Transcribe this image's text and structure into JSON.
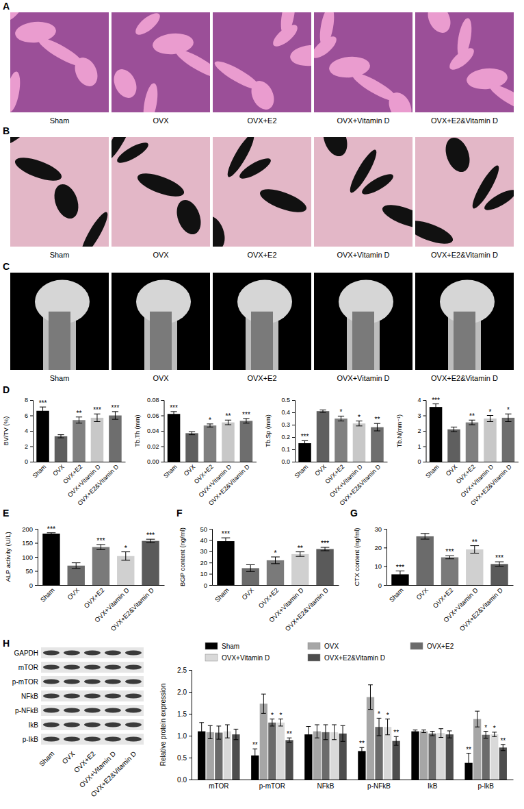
{
  "letters": [
    "A",
    "B",
    "C",
    "D",
    "E",
    "F",
    "G",
    "H"
  ],
  "panels": {
    "A": {
      "labels": [
        "Sham",
        "OVX",
        "OVX+E2",
        "OVX+Vitamin D",
        "OVX+E2&Vitamin D"
      ]
    },
    "B": {
      "labels": [
        "Sham",
        "OVX",
        "OVX+E2",
        "OVX+Vitamin D",
        "OVX+E2&Vitamin D"
      ]
    },
    "C": {
      "labels": [
        "Sham",
        "OVX",
        "OVX+E2",
        "OVX+Vitamin D",
        "OVX+E2&Vitamin D"
      ]
    }
  },
  "blot": {
    "rows": [
      "GAPDH",
      "mTOR",
      "p-mTOR",
      "NFkB",
      "p-NFkB",
      "IkB",
      "p-IkB"
    ],
    "lanes": [
      "Sham",
      "OVX",
      "OVX+E2",
      "OVX+Vitamin D",
      "OVX+E2&Vitamin D"
    ]
  },
  "chart_data": [
    {
      "type": "bar",
      "ylabel": "BV/TV (%)",
      "categories": [
        "Sham",
        "OVX",
        "OVX+E2",
        "OVX+Vitamin D",
        "OVX+E2&Vitamin D"
      ],
      "values": [
        6.6,
        3.3,
        5.4,
        5.7,
        6.0
      ],
      "errors": [
        0.5,
        0.2,
        0.4,
        0.5,
        0.5
      ],
      "annotations": [
        "***",
        null,
        "**",
        "***",
        "***"
      ],
      "colors": [
        "#000000",
        "#5f5f5f",
        "#808080",
        "#c8c8c8",
        "#6e6e6e"
      ],
      "ylim": [
        0,
        8
      ],
      "yticks": [
        0,
        2,
        4,
        6,
        8
      ]
    },
    {
      "type": "bar",
      "ylabel": "Tb.Th (mm)",
      "categories": [
        "Sham",
        "OVX",
        "OVX+E2",
        "OVX+Vitamin D",
        "OVX+E2&Vitamin D"
      ],
      "values": [
        0.062,
        0.037,
        0.047,
        0.051,
        0.053
      ],
      "errors": [
        0.003,
        0.002,
        0.002,
        0.003,
        0.003
      ],
      "annotations": [
        "***",
        null,
        "*",
        "**",
        "***"
      ],
      "colors": [
        "#000000",
        "#5f5f5f",
        "#808080",
        "#c8c8c8",
        "#6e6e6e"
      ],
      "ylim": [
        0,
        0.08
      ],
      "yticks": [
        {
          "value": 0,
          "label": "0.00"
        },
        {
          "value": 0.02,
          "label": "0.02"
        },
        {
          "value": 0.04,
          "label": "0.04"
        },
        {
          "value": 0.06,
          "label": "0.06"
        },
        {
          "value": 0.08,
          "label": "0.08"
        }
      ]
    },
    {
      "type": "bar",
      "ylabel": "Tb.Sp (mm)",
      "categories": [
        "Sham",
        "OVX",
        "OVX+E2",
        "OVX+Vitamin D",
        "OVX+E2&Vitamin D"
      ],
      "values": [
        0.15,
        0.41,
        0.35,
        0.31,
        0.28
      ],
      "errors": [
        0.02,
        0.01,
        0.02,
        0.02,
        0.03
      ],
      "annotations": [
        "***",
        null,
        "*",
        "*",
        "**"
      ],
      "colors": [
        "#000000",
        "#5f5f5f",
        "#808080",
        "#c8c8c8",
        "#6e6e6e"
      ],
      "ylim": [
        0,
        0.5
      ],
      "yticks": [
        {
          "value": 0,
          "label": "0.0"
        },
        0.1,
        0.2,
        0.3,
        0.4,
        0.5
      ]
    },
    {
      "type": "bar",
      "ylabel": "Tb.N(mm⁻¹)",
      "categories": [
        "Sham",
        "OVX",
        "OVX+E2",
        "OVX+Vitamin D",
        "OVX+E2&Vitamin D"
      ],
      "values": [
        3.55,
        2.1,
        2.55,
        2.8,
        2.85
      ],
      "errors": [
        0.2,
        0.15,
        0.15,
        0.2,
        0.25
      ],
      "annotations": [
        "***",
        null,
        "**",
        "*",
        "*"
      ],
      "colors": [
        "#000000",
        "#5f5f5f",
        "#808080",
        "#c8c8c8",
        "#6e6e6e"
      ],
      "ylim": [
        0,
        4
      ],
      "yticks": [
        0,
        1,
        2,
        3,
        4
      ]
    },
    {
      "type": "bar",
      "ylabel": "ALP activity (U/L)",
      "categories": [
        "Sham",
        "OVX",
        "OVX+E2",
        "OVX+Vitamin D",
        "OVX+E2&Vitamin D"
      ],
      "values": [
        183,
        69,
        135,
        103,
        157
      ],
      "errors": [
        3,
        10,
        9,
        15,
        6
      ],
      "annotations": [
        "***",
        null,
        "***",
        "*",
        "***"
      ],
      "colors": [
        "#000000",
        "#6b6b6b",
        "#7a7a7a",
        "#d0d0d0",
        "#5a5a5a"
      ],
      "ylim": [
        0,
        200
      ],
      "yticks": [
        0,
        50,
        100,
        150,
        200
      ]
    },
    {
      "type": "bar",
      "ylabel": "BGP content (ng/ml)",
      "categories": [
        "Sham",
        "OVX",
        "OVX+E2",
        "OVX+Vitamin D",
        "OVX+E2&Vitamin D"
      ],
      "values": [
        39,
        15,
        22,
        27.5,
        32
      ],
      "errors": [
        3,
        3,
        3,
        2,
        1.5
      ],
      "annotations": [
        "***",
        null,
        "*",
        "**",
        "***"
      ],
      "colors": [
        "#000000",
        "#6b6b6b",
        "#7a7a7a",
        "#d0d0d0",
        "#5a5a5a"
      ],
      "ylim": [
        0,
        50
      ],
      "yticks": [
        0,
        10,
        20,
        30,
        40,
        50
      ]
    },
    {
      "type": "bar",
      "ylabel": "CTX content (ng/ml)",
      "categories": [
        "Sham",
        "OVX",
        "OVX+E2",
        "OVX+Vitamin D",
        "OVX+E2&Vitamin D"
      ],
      "values": [
        5.7,
        26,
        14.8,
        19,
        11.2
      ],
      "errors": [
        1.8,
        1.5,
        0.8,
        2,
        1.2
      ],
      "annotations": [
        "***",
        null,
        "***",
        "**",
        "***"
      ],
      "colors": [
        "#000000",
        "#6b6b6b",
        "#7a7a7a",
        "#d0d0d0",
        "#5a5a5a"
      ],
      "ylim": [
        0,
        30
      ],
      "yticks": [
        0,
        10,
        20,
        30
      ]
    },
    {
      "type": "bar",
      "ylabel": "Relative protein expression",
      "legend": "top",
      "categories": [
        "mTOR",
        "p-mTOR",
        "NFkB",
        "p-NFkB",
        "IkB",
        "p-IkB"
      ],
      "series": [
        {
          "name": "Sham",
          "color": "#000000",
          "values": [
            1.1,
            0.55,
            1.03,
            0.65,
            1.1,
            0.38
          ],
          "errors": [
            0.2,
            0.15,
            0.18,
            0.08,
            0.03,
            0.22
          ],
          "annotations": [
            null,
            "**",
            null,
            "**",
            null,
            "**"
          ]
        },
        {
          "name": "OVX",
          "color": "#a6a6a6",
          "values": [
            1.08,
            1.73,
            1.1,
            1.88,
            1.1,
            1.38
          ],
          "errors": [
            0.15,
            0.22,
            0.15,
            0.28,
            0.03,
            0.18
          ],
          "annotations": [
            null,
            null,
            null,
            null,
            null,
            null
          ]
        },
        {
          "name": "OVX+E2",
          "color": "#6b6b6b",
          "values": [
            1.07,
            1.3,
            1.08,
            1.2,
            1.05,
            1.02
          ],
          "errors": [
            0.15,
            0.08,
            0.17,
            0.2,
            0.05,
            0.08
          ],
          "annotations": [
            null,
            "*",
            null,
            "*",
            null,
            "*"
          ]
        },
        {
          "name": "OVX+Vitamin D",
          "color": "#d9d9d9",
          "values": [
            1.1,
            1.3,
            1.08,
            1.2,
            1.06,
            1.03
          ],
          "errors": [
            0.15,
            0.08,
            0.17,
            0.18,
            0.1,
            0.05
          ],
          "annotations": [
            null,
            "*",
            null,
            "*",
            null,
            "*"
          ]
        },
        {
          "name": "OVX+E2&Vitamin D",
          "color": "#4d4d4d",
          "values": [
            1.03,
            0.9,
            1.05,
            0.88,
            1.03,
            0.73
          ],
          "errors": [
            0.12,
            0.05,
            0.18,
            0.1,
            0.08,
            0.07
          ],
          "annotations": [
            null,
            "**",
            null,
            "**",
            null,
            "**"
          ]
        }
      ],
      "ylim": [
        0,
        2.5
      ],
      "yticks": [
        {
          "value": 0,
          "label": "0.0"
        },
        0.5,
        {
          "value": 1,
          "label": "1.0"
        },
        1.5,
        {
          "value": 2,
          "label": "2.0"
        },
        2.5
      ]
    }
  ]
}
